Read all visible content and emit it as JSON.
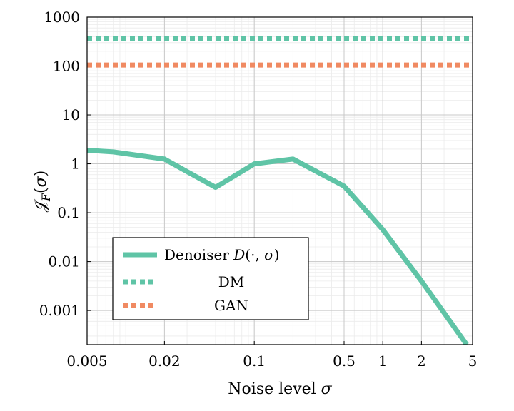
{
  "chart_data": {
    "type": "line",
    "title": "",
    "xlabel": "Noise level σ",
    "ylabel": "𝒥F(σ)",
    "x_scale": "log",
    "y_scale": "log",
    "xlim": [
      0.005,
      5
    ],
    "ylim": [
      0.0002,
      1000
    ],
    "x_ticks": [
      0.005,
      0.02,
      0.1,
      0.5,
      1,
      2,
      5
    ],
    "x_tick_labels": [
      "0.005",
      "0.02",
      "0.1",
      "0.5",
      "1",
      "2",
      "5"
    ],
    "y_ticks": [
      0.001,
      0.01,
      0.1,
      1,
      10,
      100,
      1000
    ],
    "y_tick_labels": [
      "0.001",
      "0.01",
      "0.1",
      "1",
      "10",
      "100",
      "1000"
    ],
    "grid": true,
    "legend_position": "bottom-left",
    "series": [
      {
        "name": "Denoiser D(·, σ)",
        "color": "#5fc4a6",
        "style": "solid",
        "x": [
          0.005,
          0.008,
          0.02,
          0.05,
          0.1,
          0.2,
          0.5,
          1,
          2,
          4.5
        ],
        "y": [
          1.9,
          1.75,
          1.25,
          0.33,
          1.0,
          1.25,
          0.35,
          0.045,
          0.004,
          0.0002
        ]
      },
      {
        "name": "DM",
        "color": "#5fc4a6",
        "style": "dotted",
        "x": [
          0.005,
          5
        ],
        "y": [
          370,
          370
        ]
      },
      {
        "name": "GAN",
        "color": "#f08a62",
        "style": "dotted",
        "x": [
          0.005,
          5
        ],
        "y": [
          105,
          105
        ]
      }
    ]
  }
}
